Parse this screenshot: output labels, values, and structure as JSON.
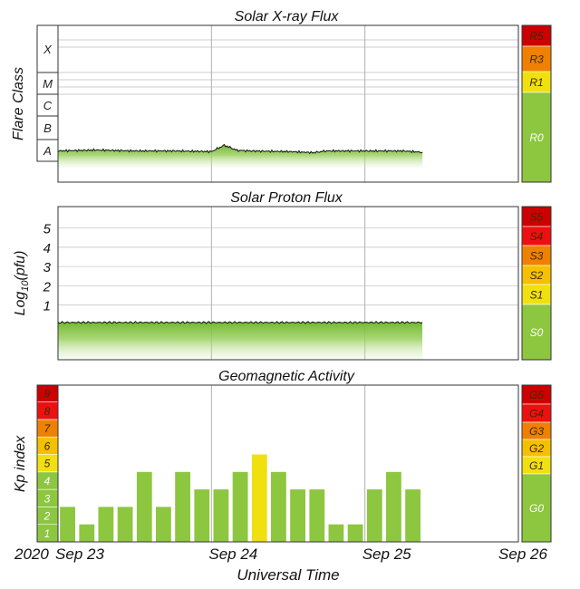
{
  "chart_data": [
    {
      "type": "area",
      "title": "Solar X-ray Flux",
      "ylabel": "Flare Class",
      "y_categories": [
        "A",
        "B",
        "C",
        "M",
        "X"
      ],
      "x_range": [
        "2020-09-23",
        "2020-09-26"
      ],
      "series": [
        {
          "x": [
            "2020-09-23 00:00",
            "2020-09-23 06:00",
            "2020-09-23 12:00",
            "2020-09-23 18:00",
            "2020-09-24 00:00",
            "2020-09-24 02:00",
            "2020-09-24 04:00",
            "2020-09-24 06:00",
            "2020-09-24 12:00",
            "2020-09-24 16:00",
            "2020-09-24 18:00",
            "2020-09-25 00:00",
            "2020-09-25 06:00",
            "2020-09-25 09:00"
          ],
          "values": [
            "A3",
            "A3.3",
            "A3",
            "A3",
            "A2.8",
            "A5.5",
            "A3.2",
            "A3",
            "A2.8",
            "A2.5",
            "A3",
            "A3",
            "A3",
            "A2.6"
          ]
        }
      ],
      "scale": [
        "R5",
        "R3",
        "R1",
        "R0"
      ],
      "scale_colors": [
        "#cc0000",
        "#f08000",
        "#f0e010",
        "#8dc63f"
      ]
    },
    {
      "type": "area",
      "title": "Solar Proton Flux",
      "ylabel": "Log10(pfu)",
      "ylabel_parts": {
        "base": "Log",
        "sub": "10",
        "tail": "(pfu)"
      },
      "yticks": [
        1,
        2,
        3,
        4,
        5
      ],
      "x_range": [
        "2020-09-23",
        "2020-09-26"
      ],
      "series": [
        {
          "x": [
            "2020-09-23 00:00",
            "2020-09-24 00:00",
            "2020-09-25 00:00",
            "2020-09-25 09:00"
          ],
          "values": [
            0.1,
            0.1,
            0.1,
            0.1
          ]
        }
      ],
      "scale": [
        "S5",
        "S4",
        "S3",
        "S2",
        "S1",
        "S0"
      ],
      "scale_colors": [
        "#cc0000",
        "#ee1010",
        "#f08000",
        "#f5c000",
        "#f0e010",
        "#8dc63f"
      ]
    },
    {
      "type": "bar",
      "title": "Geomagnetic Activity",
      "ylabel": "Kp index",
      "xlabel": "Universal Time",
      "yticks": [
        1,
        2,
        3,
        4,
        5,
        6,
        7,
        8,
        9
      ],
      "ytick_colors": [
        "#8dc63f",
        "#8dc63f",
        "#8dc63f",
        "#8dc63f",
        "#f0e010",
        "#f5c000",
        "#f08000",
        "#ee1010",
        "#cc0000"
      ],
      "x": [
        "2020-09-23 00:00",
        "2020-09-23 03:00",
        "2020-09-23 06:00",
        "2020-09-23 09:00",
        "2020-09-23 12:00",
        "2020-09-23 15:00",
        "2020-09-23 18:00",
        "2020-09-23 21:00",
        "2020-09-24 00:00",
        "2020-09-24 03:00",
        "2020-09-24 06:00",
        "2020-09-24 09:00",
        "2020-09-24 12:00",
        "2020-09-24 15:00",
        "2020-09-24 18:00",
        "2020-09-24 21:00",
        "2020-09-25 00:00",
        "2020-09-25 03:00",
        "2020-09-25 06:00"
      ],
      "values": [
        2,
        1,
        2,
        2,
        4,
        2,
        4,
        3,
        3,
        4,
        5,
        4,
        3,
        3,
        1,
        1,
        3,
        4,
        3
      ],
      "bar_colors": {
        "below_5": "#8dc63f",
        "5": "#f0e010"
      },
      "scale": [
        "G5",
        "G4",
        "G3",
        "G2",
        "G1",
        "G0"
      ],
      "scale_colors": [
        "#cc0000",
        "#ee1010",
        "#f08000",
        "#f5c000",
        "#f0e010",
        "#8dc63f"
      ]
    }
  ],
  "x_axis": {
    "year_label": "2020",
    "tick_labels": [
      "Sep 23",
      "Sep 24",
      "Sep 25",
      "Sep 26"
    ]
  }
}
